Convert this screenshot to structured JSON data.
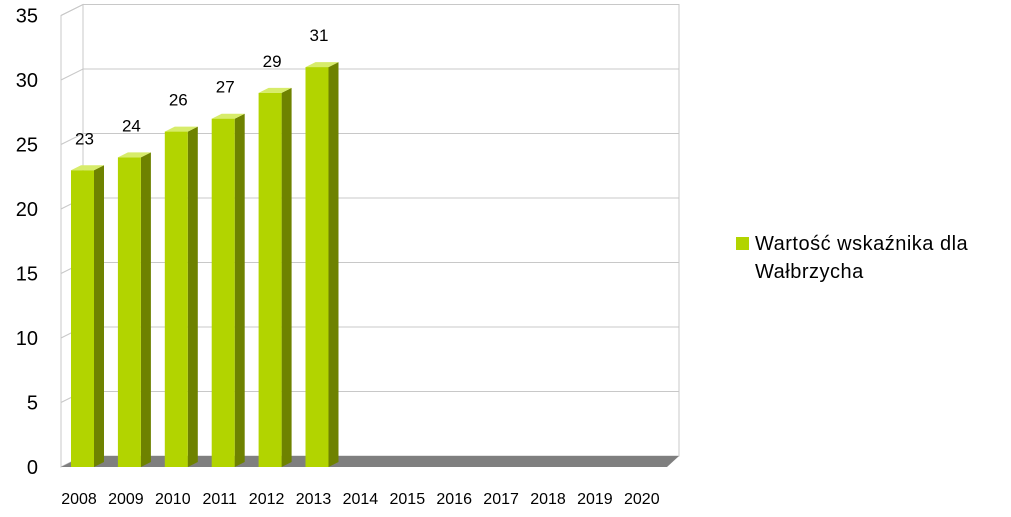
{
  "chart_data": {
    "type": "bar",
    "categories": [
      "2008",
      "2009",
      "2010",
      "2011",
      "2012",
      "2013",
      "2014",
      "2015",
      "2016",
      "2017",
      "2018",
      "2019",
      "2020"
    ],
    "series": [
      {
        "name": "Wartość wskaźnika dla Wałbrzycha",
        "values": [
          23,
          24,
          26,
          27,
          29,
          31,
          null,
          null,
          null,
          null,
          null,
          null,
          null
        ]
      }
    ],
    "data_labels": [
      "23",
      "24",
      "26",
      "27",
      "29",
      "31",
      "",
      "",
      "",
      "",
      "",
      "",
      ""
    ],
    "yticks": [
      "0",
      "5",
      "10",
      "15",
      "20",
      "25",
      "30",
      "35"
    ],
    "ylim": [
      0,
      35
    ],
    "title": "",
    "xlabel": "",
    "ylabel": "",
    "grid": true,
    "legend_position": "right",
    "colors": {
      "bar_front": "#b2d400",
      "bar_side": "#6e8200",
      "bar_top": "#d7ec6a",
      "floor": "#7f7f7f",
      "grid": "#c8c8c8",
      "wall": "#ffffff"
    }
  }
}
